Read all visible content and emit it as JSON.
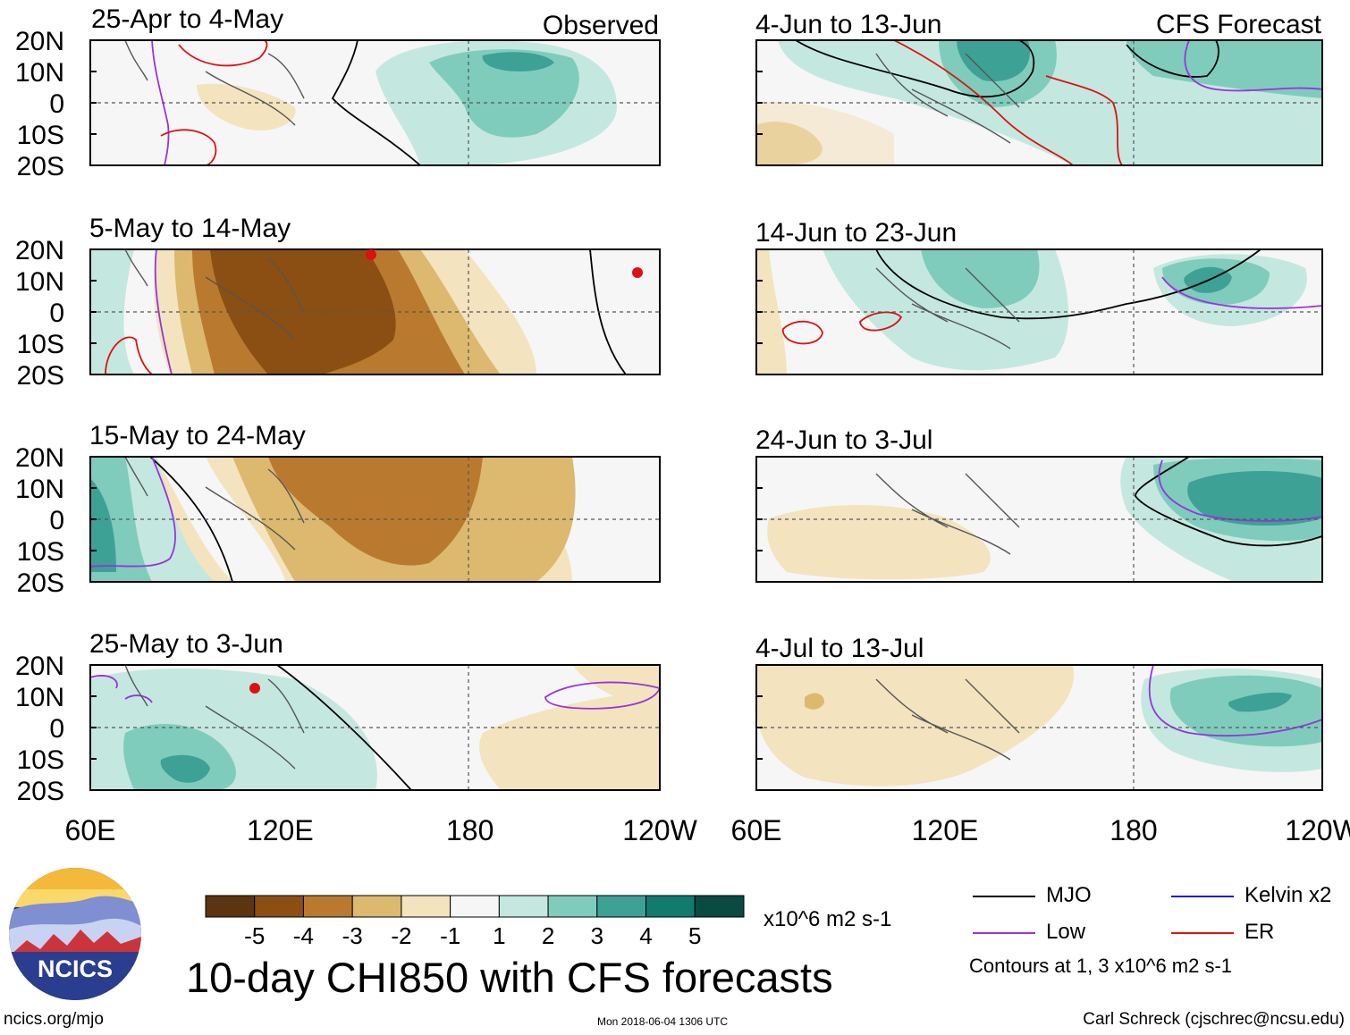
{
  "chart_data": {
    "type": "heatmap",
    "title": "10-day CHI850 with CFS forecasts",
    "variable": "CHI850",
    "units": "x10^6 m2 s-1",
    "x_tick_labels": [
      "60E",
      "120E",
      "180",
      "120W"
    ],
    "y_tick_labels": [
      "20N",
      "10N",
      "0",
      "10S",
      "20S"
    ],
    "color_scale": {
      "tick_labels": [
        "-5",
        "-4",
        "-3",
        "-2",
        "-1",
        "1",
        "2",
        "3",
        "4",
        "5"
      ],
      "colors": [
        "#5a3510",
        "#8b4f13",
        "#b97a30",
        "#dcb96f",
        "#f3e3bf",
        "#f6f6f6",
        "#c4e8df",
        "#7fccbd",
        "#3ea195",
        "#137a6e",
        "#0b4a40"
      ]
    },
    "contour_legend": [
      {
        "label": "MJO",
        "color": "#000000"
      },
      {
        "label": "Kelvin x2",
        "color": "#1a1adc"
      },
      {
        "label": "Low",
        "color": "#9933dd"
      },
      {
        "label": "ER",
        "color": "#dd1111"
      }
    ],
    "contour_note": "Contours at 1, 3 x10^6 m2 s-1",
    "observed_label": "Observed",
    "forecast_label": "CFS Forecast",
    "panels": [
      {
        "title": "25-Apr to 4-May",
        "kind": "observed"
      },
      {
        "title": "5-May to 14-May",
        "kind": "observed"
      },
      {
        "title": "15-May to 24-May",
        "kind": "observed"
      },
      {
        "title": "25-May to 3-Jun",
        "kind": "observed"
      },
      {
        "title": "4-Jun to 13-Jun",
        "kind": "forecast"
      },
      {
        "title": "14-Jun to 23-Jun",
        "kind": "forecast"
      },
      {
        "title": "24-Jun to 3-Jul",
        "kind": "forecast"
      },
      {
        "title": "4-Jul to 13-Jul",
        "kind": "forecast"
      }
    ]
  },
  "footer": {
    "site": "ncics.org/mjo",
    "timestamp": "Mon 2018-06-04 1306 UTC",
    "author": "Carl Schreck (cjschrec@ncsu.edu)"
  },
  "logo": {
    "text": "NCICS"
  }
}
